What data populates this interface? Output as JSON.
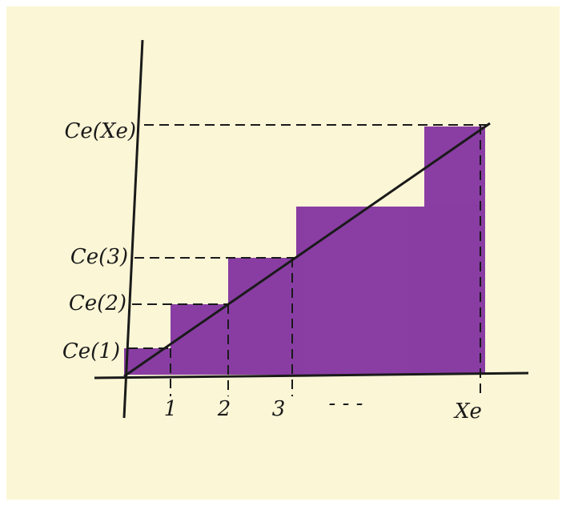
{
  "y_labels": [
    "Ce(Xe)",
    "Ce(3)",
    "Ce(2)",
    "Ce(1)"
  ],
  "x_labels": [
    "1",
    "2",
    "3",
    "- - -",
    "Xe"
  ]
}
